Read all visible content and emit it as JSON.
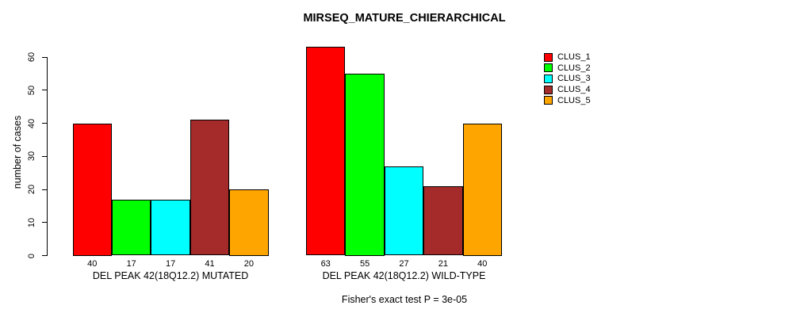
{
  "title": "MIRSEQ_MATURE_CHIERARCHICAL",
  "chart_data": {
    "type": "bar",
    "title": "MIRSEQ_MATURE_CHIERARCHICAL",
    "ylabel": "number of cases",
    "xlabel": "",
    "yticks": [
      0,
      10,
      20,
      30,
      40,
      50,
      60
    ],
    "ylim": [
      0,
      63
    ],
    "grid": false,
    "legend_position": "top-right",
    "series": [
      {
        "name": "CLUS_1",
        "color": "#FF0000"
      },
      {
        "name": "CLUS_2",
        "color": "#00FF00"
      },
      {
        "name": "CLUS_3",
        "color": "#00FFFF"
      },
      {
        "name": "CLUS_4",
        "color": "#A52A2A"
      },
      {
        "name": "CLUS_5",
        "color": "#FFA500"
      }
    ],
    "groups": [
      {
        "label": "DEL PEAK 42(18Q12.2) MUTATED",
        "values": [
          40,
          17,
          17,
          41,
          20
        ]
      },
      {
        "label": "DEL PEAK 42(18Q12.2) WILD-TYPE",
        "values": [
          63,
          55,
          27,
          21,
          40
        ]
      }
    ],
    "bar_values_labeled": true,
    "footnote": "Fisher's exact test P = 3e-05"
  }
}
